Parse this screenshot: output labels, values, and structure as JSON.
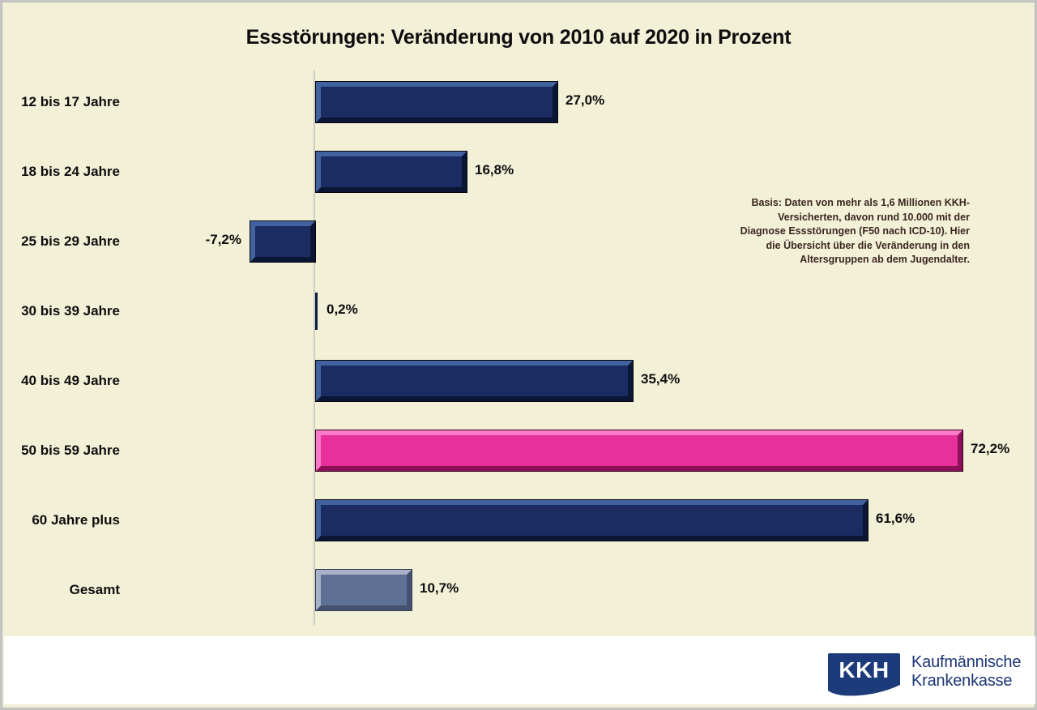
{
  "chart_data": {
    "type": "bar",
    "orientation": "horizontal",
    "title": "Essstörungen: Veränderung von 2010 auf 2020 in Prozent",
    "categories": [
      "12 bis 17 Jahre",
      "18 bis 24 Jahre",
      "25 bis 29 Jahre",
      "30 bis 39 Jahre",
      "40 bis 49 Jahre",
      "50 bis 59 Jahre",
      "60 Jahre plus",
      "Gesamt"
    ],
    "values": [
      27.0,
      16.8,
      -7.2,
      0.2,
      35.4,
      72.2,
      61.6,
      10.7
    ],
    "value_labels": [
      "27,0%",
      "16,8%",
      "-7,2%",
      "0,2%",
      "35,4%",
      "72,2%",
      "61,6%",
      "10,7%"
    ],
    "value_suffix": "%",
    "color_keys": [
      "navy",
      "navy",
      "navy",
      "navy",
      "navy",
      "pink",
      "navy",
      "slate"
    ],
    "colors": {
      "navy": "#1a2c62",
      "pink": "#e7309b",
      "slate": "#5e7094"
    },
    "highlight_category": "50 bis 59 Jahre",
    "xlim": [
      -10,
      80
    ],
    "grid": false,
    "legend": "none",
    "zero_axis_line": true
  },
  "annotation": {
    "text": "Basis: Daten von mehr als 1,6 Millionen KKH-Versicherten, davon rund 10.000 mit der Diagnose Essstörungen (F50 nach ICD-10). Hier die Übersicht über die Veränderung in den Altersgruppen ab dem Jugendalter."
  },
  "footer": {
    "logo": "KKH",
    "brand_line1": "Kaufmännische",
    "brand_line2": "Krankenkasse"
  },
  "style_colors": {
    "background": "#f3f0d8",
    "footer_background": "#ffffff",
    "annotation_text": "#3b2620",
    "logo_navy": "#1d3a7a",
    "frame_border": "#c6c6c6"
  }
}
